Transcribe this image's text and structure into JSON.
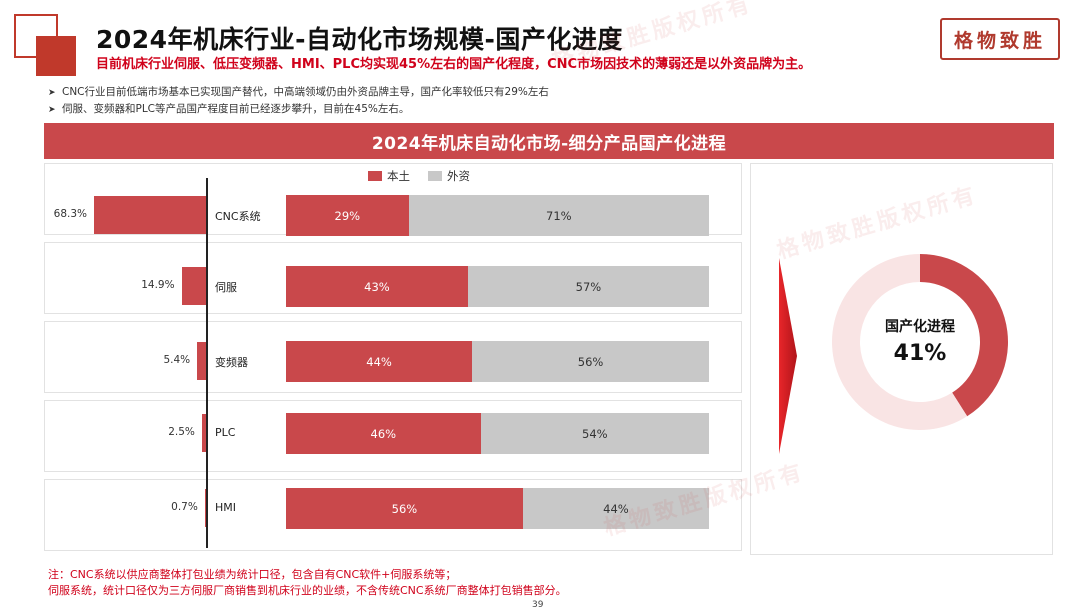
{
  "header": {
    "title": "2024年机床行业-自动化市场规模-国产化进度",
    "subtitle": "目前机床行业伺服、低压变频器、HMI、PLC均实现45%左右的国产化程度，CNC市场因技术的薄弱还是以外资品牌为主。",
    "brand": "格物致胜"
  },
  "bullets": [
    "CNC行业目前低端市场基本已实现国产替代，中高端领域仍由外资品牌主导，国产化率较低只有29%左右",
    "伺服、变频器和PLC等产品国产程度目前已经逐步攀升，目前在45%左右。"
  ],
  "banner": {
    "title": "2024年机床自动化市场-细分产品国产化进程"
  },
  "watermark": {
    "text": "格物致胜版权所有"
  },
  "chart_data": [
    {
      "type": "bar",
      "orientation": "horizontal",
      "categories": [
        "CNC系统",
        "伺服",
        "变频器",
        "PLC",
        "HMI"
      ],
      "values": [
        68.3,
        14.9,
        5.4,
        2.5,
        0.7
      ],
      "value_labels": [
        "68.3%",
        "14.9%",
        "5.4%",
        "2.5%",
        "0.7%"
      ],
      "bar_direction": "right-to-left",
      "color": "#c9484b"
    },
    {
      "type": "bar",
      "orientation": "horizontal",
      "stacked": "percent",
      "categories": [
        "CNC系统",
        "伺服",
        "变频器",
        "PLC",
        "HMI"
      ],
      "legend_position": "top",
      "series": [
        {
          "name": "本土",
          "color": "#c9484b",
          "values": [
            29,
            43,
            44,
            46,
            56
          ],
          "labels": [
            "29%",
            "43%",
            "44%",
            "46%",
            "56%"
          ]
        },
        {
          "name": "外资",
          "color": "#c8c8c8",
          "values": [
            71,
            57,
            56,
            54,
            44
          ],
          "labels": [
            "71%",
            "57%",
            "56%",
            "54%",
            "44%"
          ]
        }
      ]
    },
    {
      "type": "pie",
      "style": "donut",
      "center_label": "国产化进程",
      "center_value": "41%",
      "segments": [
        {
          "value": 41,
          "color": "#c9484b"
        },
        {
          "value": 59,
          "color": "#f9e4e4"
        }
      ]
    }
  ],
  "footnote": {
    "lines": [
      "注：CNC系统以供应商整体打包业绩为统计口径，包含自有CNC软件+伺服系统等；",
      "伺服系统，统计口径仅为三方伺服厂商销售到机床行业的业绩，不含传统CNC系统厂商整体打包销售部分。"
    ]
  },
  "page": {
    "number": "39"
  }
}
